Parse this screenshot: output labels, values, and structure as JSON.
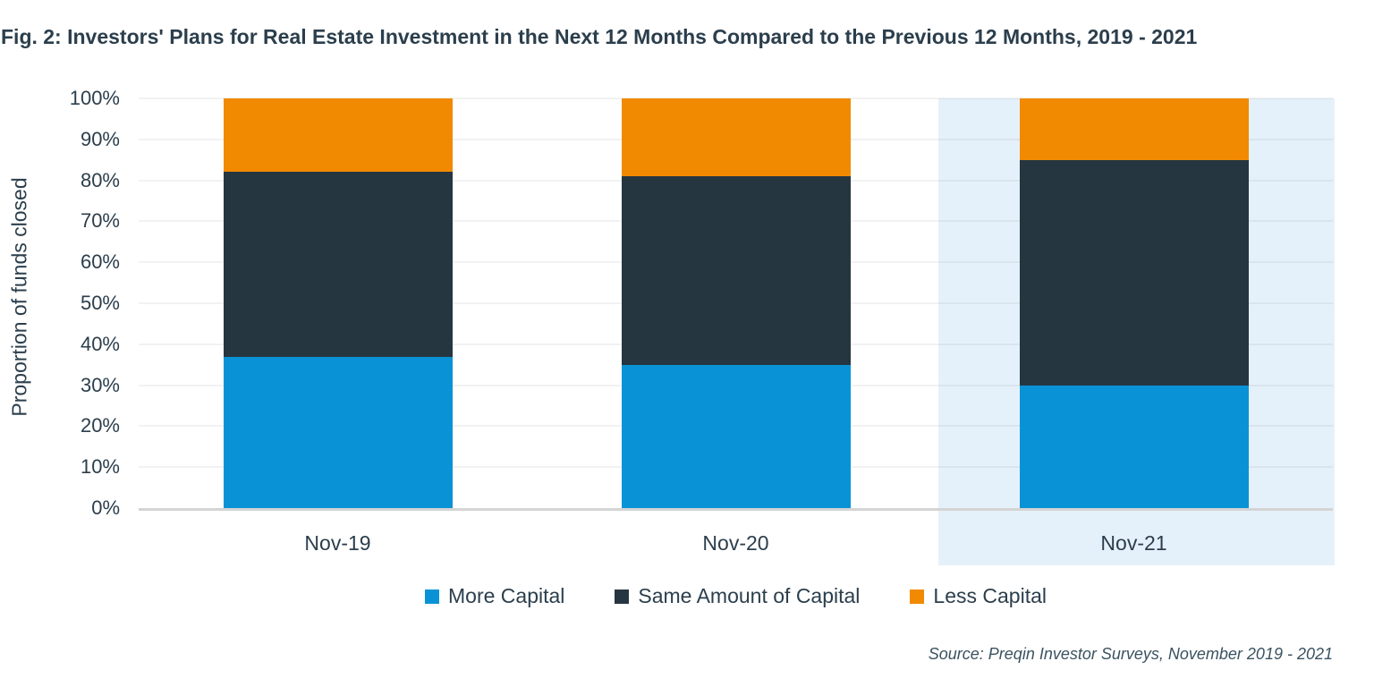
{
  "chart_data": {
    "type": "bar",
    "stacked": true,
    "title": "Fig. 2: Investors' Plans for Real Estate Investment in the Next 12 Months Compared to the Previous 12 Months, 2019 - 2021",
    "ylabel": "Proportion of funds closed",
    "xlabel": "",
    "categories": [
      "Nov-19",
      "Nov-20",
      "Nov-21"
    ],
    "series": [
      {
        "name": "More Capital",
        "color": "#0993D6",
        "values": [
          37,
          35,
          30
        ]
      },
      {
        "name": "Same Amount of Capital",
        "color": "#263641",
        "values": [
          45,
          46,
          55
        ]
      },
      {
        "name": "Less Capital",
        "color": "#F18A00",
        "values": [
          18,
          19,
          15
        ]
      }
    ],
    "ylim": [
      0,
      100
    ],
    "ytick_step": 10,
    "ytick_suffix": "%",
    "grid": true,
    "legend_position": "bottom",
    "highlighted_category": "Nov-21",
    "highlight_color": "#E5F1FA",
    "source": "Source: Preqin Investor Surveys, November 2019 - 2021"
  },
  "colors": {
    "text": "#2B3E4C",
    "source_text": "#3A5260",
    "gridline": "rgba(0,0,0,0.05)",
    "axis_line": "#D4D4D4"
  }
}
